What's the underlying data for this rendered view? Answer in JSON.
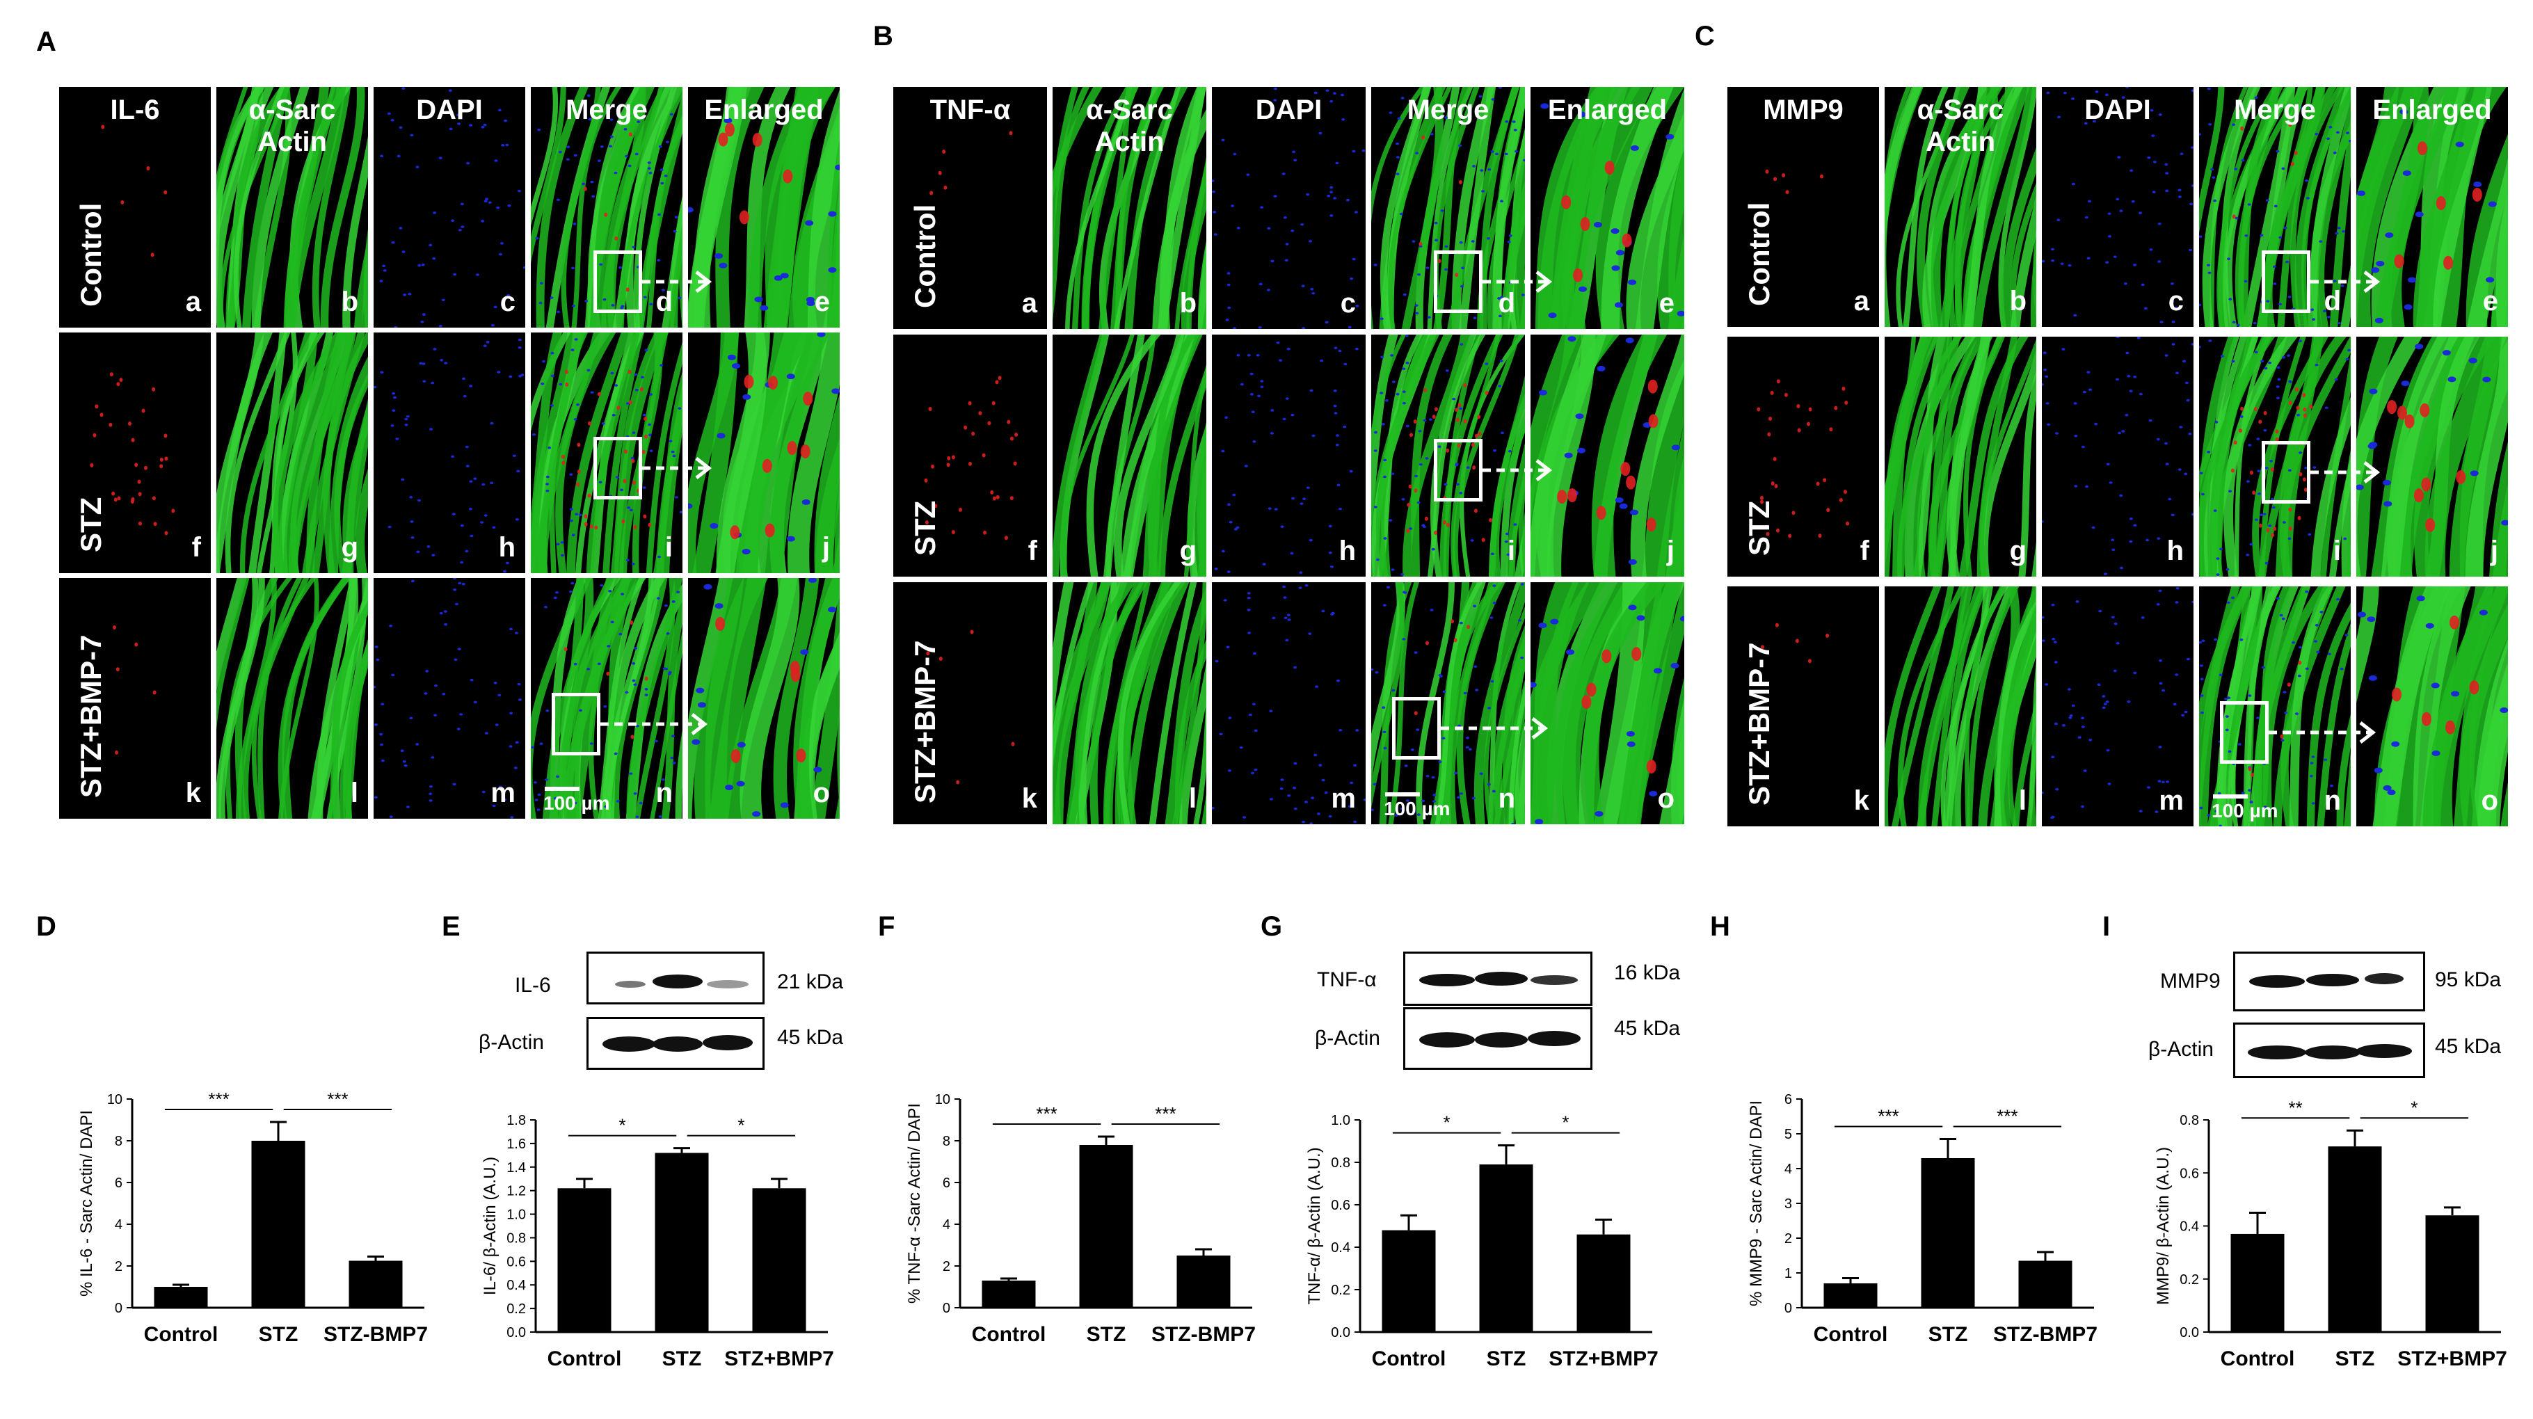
{
  "figure": {
    "micrograph_panels": [
      {
        "letter": "A",
        "columns": [
          "IL-6",
          "α-Sarc Actin",
          "DAPI",
          "Merge",
          "Enlarged"
        ],
        "rows": [
          "Control",
          "STZ",
          "STZ+BMP-7"
        ],
        "sublabels": [
          [
            "a",
            "b",
            "c",
            "d",
            "e"
          ],
          [
            "f",
            "g",
            "h",
            "i",
            "j"
          ],
          [
            "k",
            "l",
            "m",
            "n",
            "o"
          ]
        ],
        "scale_bar": "100 µm"
      },
      {
        "letter": "B",
        "columns": [
          "TNF-α",
          "α-Sarc Actin",
          "DAPI",
          "Merge",
          "Enlarged"
        ],
        "rows": [
          "Control",
          "STZ",
          "STZ+BMP-7"
        ],
        "sublabels": [
          [
            "a",
            "b",
            "c",
            "d",
            "e"
          ],
          [
            "f",
            "g",
            "h",
            "i",
            "j"
          ],
          [
            "k",
            "l",
            "m",
            "n",
            "o"
          ]
        ],
        "scale_bar": "100 µm"
      },
      {
        "letter": "C",
        "columns": [
          "MMP9",
          "α-Sarc Actin",
          "DAPI",
          "Merge",
          "Enlarged"
        ],
        "rows": [
          "Control",
          "STZ",
          "STZ+BMP-7"
        ],
        "sublabels": [
          [
            "a",
            "b",
            "c",
            "d",
            "e"
          ],
          [
            "f",
            "g",
            "h",
            "i",
            "j"
          ],
          [
            "k",
            "l",
            "m",
            "n",
            "o"
          ]
        ],
        "scale_bar": "100 µm"
      }
    ],
    "blots": {
      "E": {
        "rows": [
          {
            "label": "IL-6",
            "kda": "21 kDa"
          },
          {
            "label": "β-Actin",
            "kda": "45 kDa"
          }
        ]
      },
      "G": {
        "rows": [
          {
            "label": "TNF-α",
            "kda": "16 kDa"
          },
          {
            "label": "β-Actin",
            "kda": "45 kDa"
          }
        ]
      },
      "I": {
        "rows": [
          {
            "label": "MMP9",
            "kda": "95 kDa"
          },
          {
            "label": "β-Actin",
            "kda": "45 kDa"
          }
        ]
      }
    },
    "colors": {
      "bar": "#000000",
      "red_stain": "#e02020",
      "green_stain": "#1fb81f",
      "dapi": "#1a2ad8",
      "background": "#000000"
    }
  },
  "chart_data": [
    {
      "panel": "D",
      "type": "bar",
      "categories": [
        "Control",
        "STZ",
        "STZ-BMP7"
      ],
      "values": [
        1.0,
        8.0,
        2.25
      ],
      "errors": [
        0.1,
        0.9,
        0.2
      ],
      "ylabel": "% IL-6 - Sarc Actin/ DAPI",
      "ylim": [
        0,
        10
      ],
      "yticks": [
        "0",
        "2",
        "4",
        "6",
        "8",
        "10"
      ],
      "significance": [
        {
          "from": 0,
          "to": 1,
          "label": "***"
        },
        {
          "from": 1,
          "to": 2,
          "label": "***"
        }
      ]
    },
    {
      "panel": "E",
      "type": "bar",
      "categories": [
        "Control",
        "STZ",
        "STZ+BMP7"
      ],
      "values": [
        1.22,
        1.52,
        1.22
      ],
      "errors": [
        0.08,
        0.04,
        0.08
      ],
      "ylabel": "IL-6/ β-Actin (A.U.)",
      "ylim": [
        0,
        1.8
      ],
      "yticks": [
        "0.0",
        "0.2",
        "0.4",
        "0.6",
        "0.8",
        "1.0",
        "1.2",
        "1.4",
        "1.6",
        "1.8"
      ],
      "significance": [
        {
          "from": 0,
          "to": 1,
          "label": "*"
        },
        {
          "from": 1,
          "to": 2,
          "label": "*"
        }
      ]
    },
    {
      "panel": "F",
      "type": "bar",
      "categories": [
        "Control",
        "STZ",
        "STZ-BMP7"
      ],
      "values": [
        1.3,
        7.8,
        2.5
      ],
      "errors": [
        0.1,
        0.4,
        0.3
      ],
      "ylabel": "% TNF-α -Sarc Actin/ DAPI",
      "ylim": [
        0,
        10
      ],
      "yticks": [
        "0",
        "2",
        "4",
        "6",
        "8",
        "10"
      ],
      "significance": [
        {
          "from": 0,
          "to": 1,
          "label": "***"
        },
        {
          "from": 1,
          "to": 2,
          "label": "***"
        }
      ]
    },
    {
      "panel": "G",
      "type": "bar",
      "categories": [
        "Control",
        "STZ",
        "STZ+BMP7"
      ],
      "values": [
        0.48,
        0.79,
        0.46
      ],
      "errors": [
        0.07,
        0.09,
        0.07
      ],
      "ylabel": "TNF-α/ β-Actin (A.U.)",
      "ylim": [
        0,
        1.0
      ],
      "yticks": [
        "0.0",
        "0.2",
        "0.4",
        "0.6",
        "0.8",
        "1.0"
      ],
      "significance": [
        {
          "from": 0,
          "to": 1,
          "label": "*"
        },
        {
          "from": 1,
          "to": 2,
          "label": "*"
        }
      ]
    },
    {
      "panel": "H",
      "type": "bar",
      "categories": [
        "Control",
        "STZ",
        "STZ-BMP7"
      ],
      "values": [
        0.7,
        4.3,
        1.35
      ],
      "errors": [
        0.15,
        0.55,
        0.25
      ],
      "ylabel": "% MMP9 - Sarc Actin/ DAPI",
      "ylim": [
        0,
        6
      ],
      "yticks": [
        "0",
        "1",
        "2",
        "3",
        "4",
        "5",
        "6"
      ],
      "significance": [
        {
          "from": 0,
          "to": 1,
          "label": "***"
        },
        {
          "from": 1,
          "to": 2,
          "label": "***"
        }
      ]
    },
    {
      "panel": "I",
      "type": "bar",
      "categories": [
        "Control",
        "STZ",
        "STZ+BMP7"
      ],
      "values": [
        0.37,
        0.7,
        0.44
      ],
      "errors": [
        0.08,
        0.06,
        0.03
      ],
      "ylabel": "MMP9/ β-Actin (A.U.)",
      "ylim": [
        0,
        0.8
      ],
      "yticks": [
        "0.0",
        "0.2",
        "0.4",
        "0.6",
        "0.8"
      ],
      "significance": [
        {
          "from": 0,
          "to": 1,
          "label": "**"
        },
        {
          "from": 1,
          "to": 2,
          "label": "*"
        }
      ]
    }
  ]
}
